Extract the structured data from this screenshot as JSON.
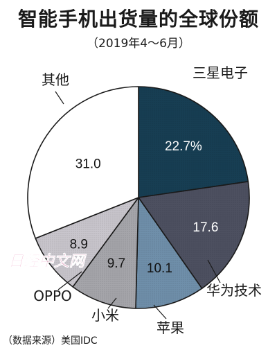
{
  "header": {
    "title": "智能手机出货量的全球份额",
    "subtitle": "（2019年4～6月）"
  },
  "chart_data": {
    "type": "pie",
    "title": "智能手机出货量的全球份额",
    "subtitle": "（2019年4～6月）",
    "start": "12 o'clock",
    "direction": "clockwise",
    "slices": [
      {
        "name": "三星电子",
        "value": 22.7,
        "label": "22.7%",
        "color": "#173e53",
        "text_color": "#ffffff"
      },
      {
        "name": "华为技术",
        "value": 17.6,
        "label": "17.6",
        "color": "#4d5060",
        "text_color": "#ffffff"
      },
      {
        "name": "苹果",
        "value": 10.1,
        "label": "10.1",
        "color": "#6f8faa",
        "text_color": "#111111"
      },
      {
        "name": "小米",
        "value": 9.7,
        "label": "9.7",
        "color": "#a5a5aa",
        "text_color": "#111111"
      },
      {
        "name": "OPPO",
        "value": 8.9,
        "label": "8.9",
        "color": "#c8c5cc",
        "text_color": "#111111"
      },
      {
        "name": "其他",
        "value": 31.0,
        "label": "31.0",
        "color": "#ffffff",
        "text_color": "#111111"
      }
    ]
  },
  "watermark": "日经中文网",
  "footer": {
    "source": "（数据来源）美国IDC"
  }
}
